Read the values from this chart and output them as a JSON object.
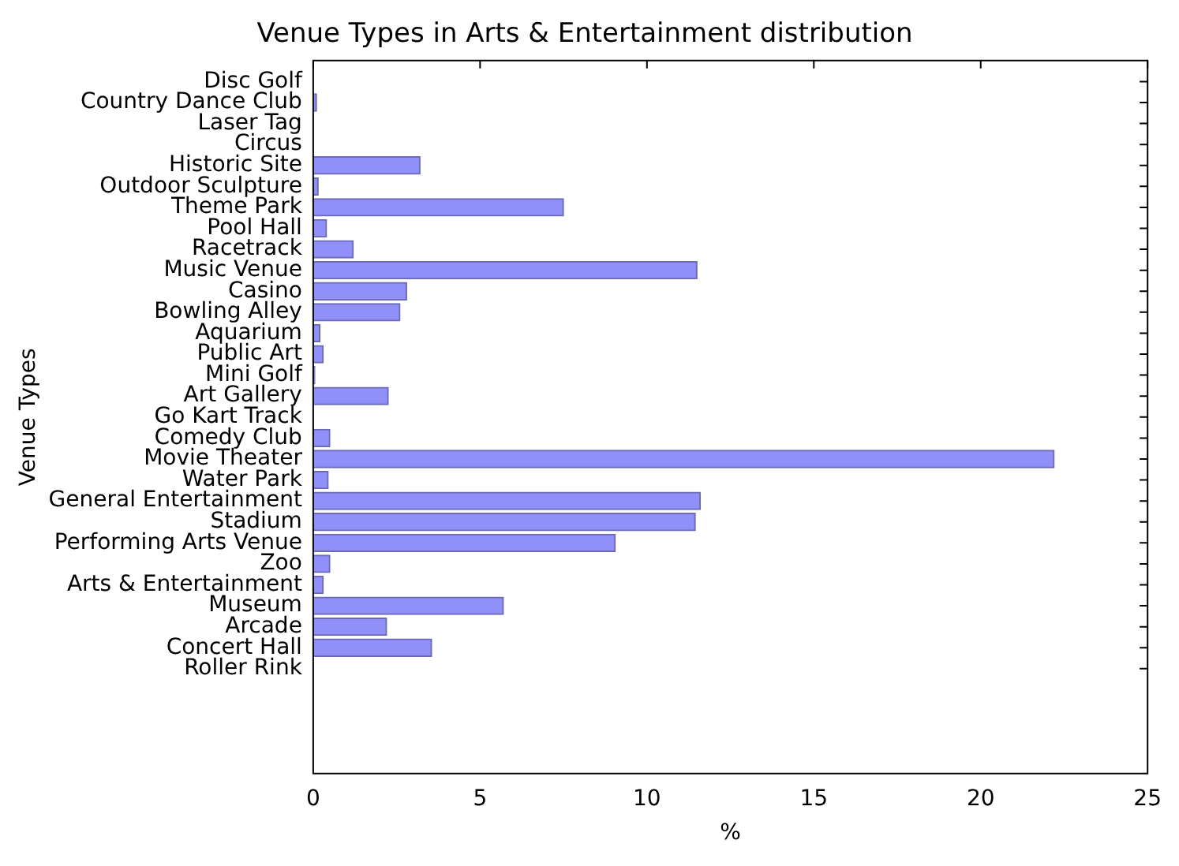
{
  "chart_data": {
    "type": "bar",
    "orientation": "horizontal",
    "title": "Venue Types in Arts & Entertainment distribution",
    "xlabel": "%",
    "ylabel": "Venue Types",
    "categories": [
      "Disc Golf",
      "Country Dance Club",
      "Laser Tag",
      "Circus",
      "Historic Site",
      "Outdoor Sculpture",
      "Theme Park",
      "Pool Hall",
      "Racetrack",
      "Music Venue",
      "Casino",
      "Bowling Alley",
      "Aquarium",
      "Public Art",
      "Mini Golf",
      "Art Gallery",
      "Go Kart Track",
      "Comedy Club",
      "Movie Theater",
      "Water Park",
      "General Entertainment",
      "Stadium",
      "Performing Arts Venue",
      "Zoo",
      "Arts & Entertainment",
      "Museum",
      "Arcade",
      "Concert Hall",
      "Roller Rink"
    ],
    "values": [
      0,
      0.1,
      0,
      0,
      3.2,
      0.15,
      7.5,
      0.4,
      1.2,
      11.5,
      2.8,
      2.6,
      0.2,
      0.3,
      0.05,
      2.25,
      0,
      0.5,
      22.2,
      0.45,
      11.6,
      11.45,
      9.05,
      0.5,
      0.3,
      5.7,
      2.2,
      3.55,
      0
    ],
    "color": "#9090f8",
    "xlim": [
      0,
      25
    ],
    "xticks": [
      0,
      5,
      10,
      15,
      20,
      25
    ],
    "grid": false,
    "legend": false
  }
}
